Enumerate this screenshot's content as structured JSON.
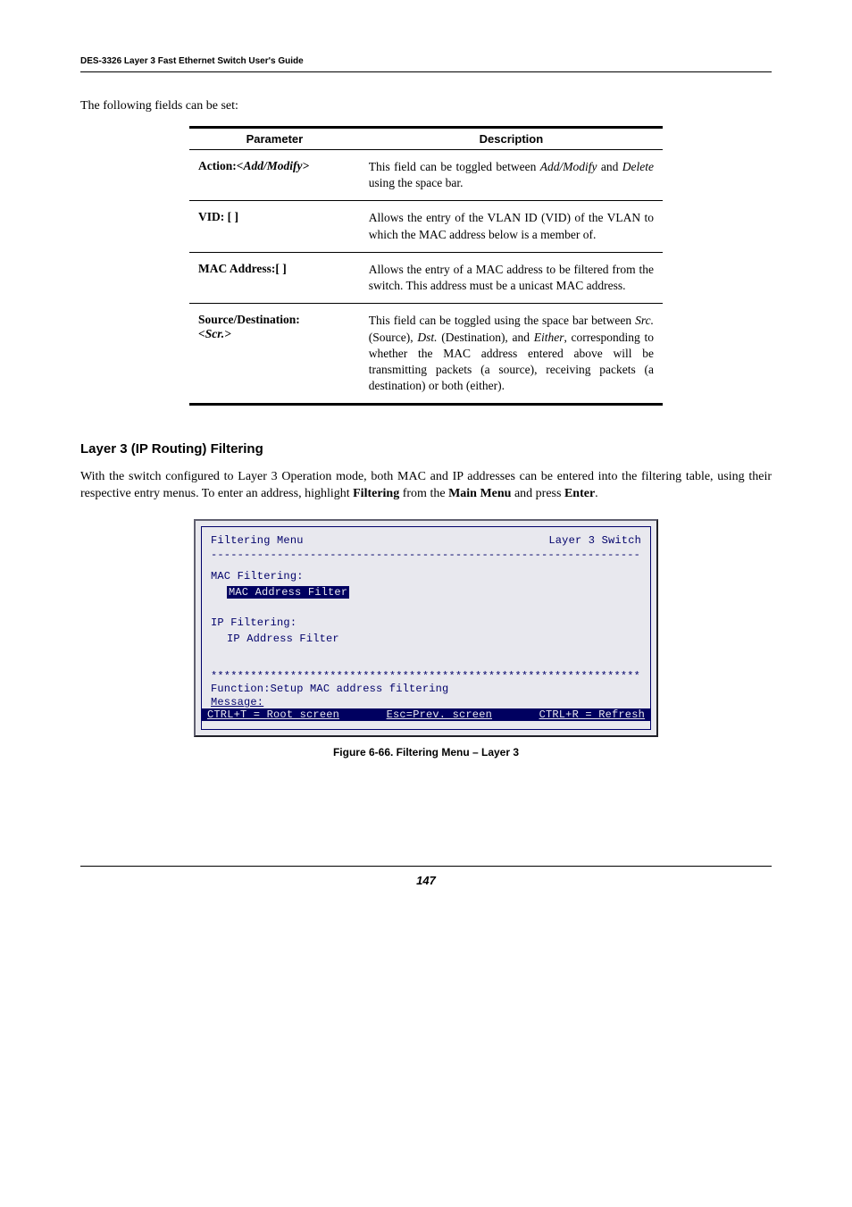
{
  "header": "DES-3326 Layer 3 Fast Ethernet Switch User's Guide",
  "intro": "The following fields can be set:",
  "table": {
    "headers": [
      "Parameter",
      "Description"
    ],
    "rows": [
      {
        "param_name": "Action:",
        "param_arg": "<Add/Modify>",
        "desc_html": "This field can be toggled between <span class=\"ital\">Add/Modify</span> and <span class=\"ital\">Delete</span> using the space bar."
      },
      {
        "param_name": "VID: [  ]",
        "param_arg": "",
        "desc_html": "Allows the entry of the VLAN ID (VID) of the VLAN to which the MAC address below is a member of."
      },
      {
        "param_name": "MAC Address:[      ]",
        "param_arg": "",
        "desc_html": "Allows the entry of a MAC address to be filtered from the switch. This address must be a unicast MAC address."
      },
      {
        "param_name": "Source/Destination:",
        "param_arg": "<Scr.>",
        "desc_html": "This field can be toggled using the space bar between <span class=\"ital\">Src.</span> (Source), <span class=\"ital\">Dst.</span> (Destination), and <span class=\"ital\">Either</span>, corresponding to whether the MAC address entered above will be transmitting packets (a source), receiving packets (a destination) or both (either)."
      }
    ]
  },
  "section_heading": "Layer 3 (IP Routing) Filtering",
  "body_para_html": "With the switch configured to Layer 3 Operation mode, both MAC and IP addresses can be entered into the filtering table, using their respective entry menus. To enter an address, highlight <b>Filtering</b> from the <b>Main Menu</b> and press <b>Enter</b>.",
  "terminal": {
    "title_left": "Filtering Menu",
    "title_right": "Layer 3 Switch",
    "mac_label": "MAC Filtering:",
    "mac_item": "MAC Address Filter",
    "ip_label": "IP Filtering:",
    "ip_item": "IP Address Filter",
    "function_line": "Function:Setup MAC address filtering",
    "message_label": "Message:",
    "footer_left": "CTRL+T = Root screen",
    "footer_mid": "Esc=Prev. screen",
    "footer_right": "CTRL+R = Refresh"
  },
  "figure_caption": "Figure 6-66.  Filtering Menu – Layer 3",
  "page_number": "147",
  "colors": {
    "terminal_bg": "#e8e8ee",
    "terminal_fg": "#00006a",
    "highlight_bg": "#000060",
    "highlight_fg": "#e8e8ee"
  }
}
